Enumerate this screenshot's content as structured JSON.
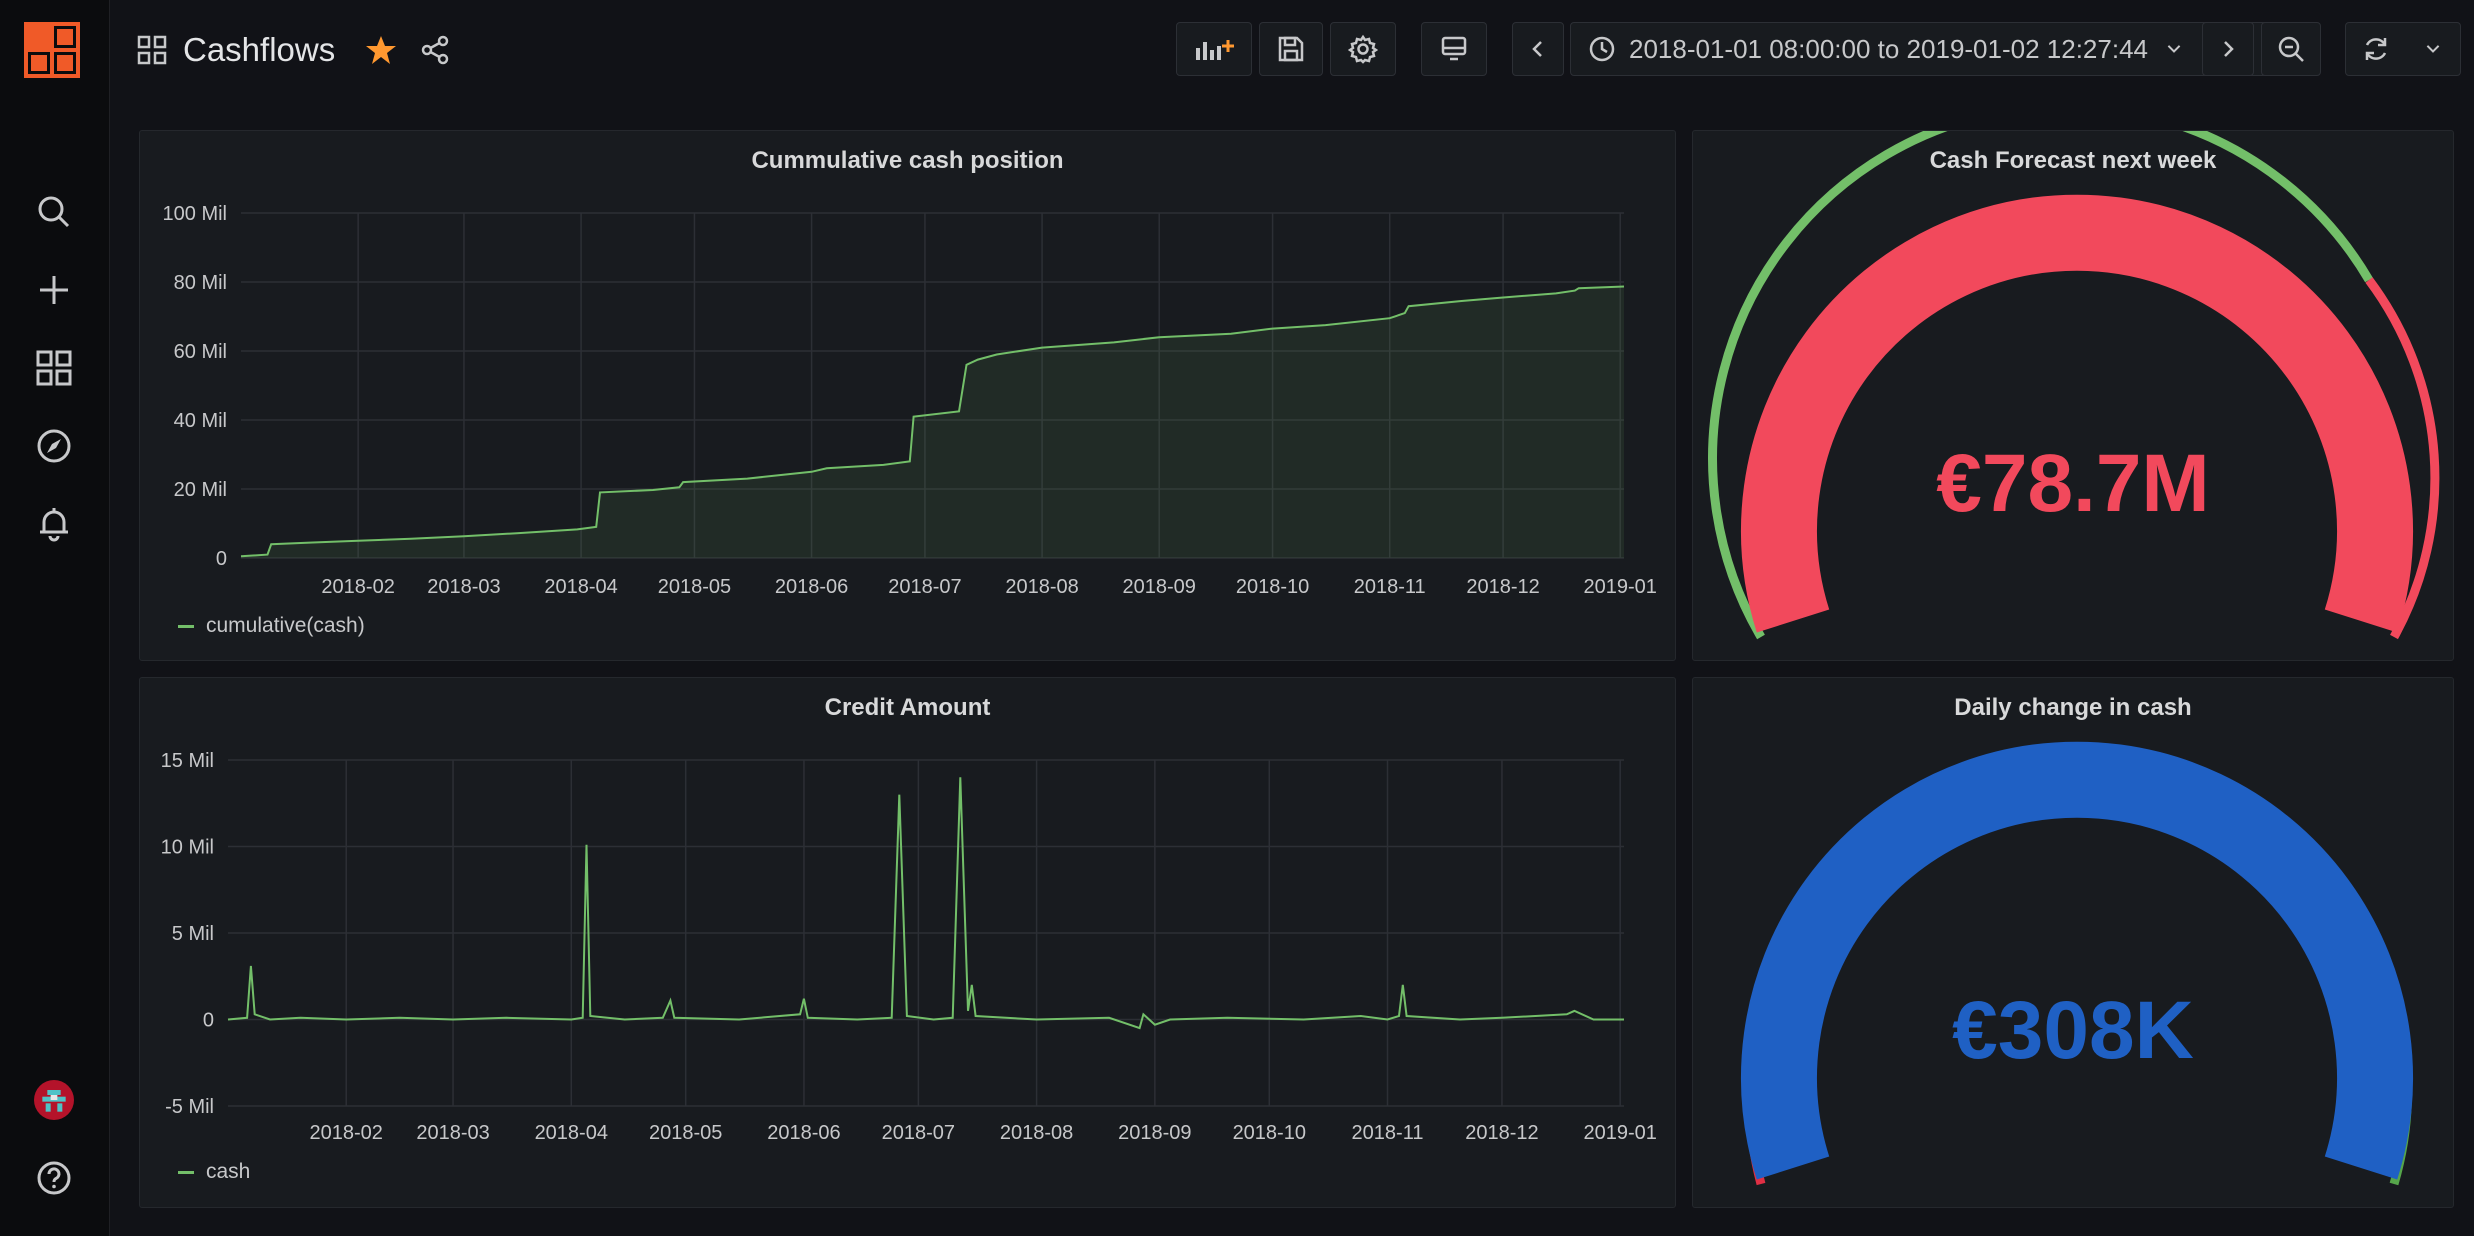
{
  "dashboard": {
    "title": "Cashflows",
    "time_range": "2018-01-01 08:00:00 to 2019-01-02 12:27:44"
  },
  "icons": {
    "logo": "grafana-logo-icon",
    "search": "search-icon",
    "create": "plus-icon",
    "dashboards": "grid-icon",
    "explore": "compass-icon",
    "alerting": "bell-icon",
    "profile": "avatar",
    "help": "help-icon"
  },
  "colors": {
    "background": "#111217",
    "panel": "#181b1f",
    "series_green": "#73bf69",
    "gauge_red": "#f2495c",
    "gauge_blue": "#1f60c4",
    "star": "#ff9830"
  },
  "panels": {
    "cumulative": {
      "title": "Cummulative cash position",
      "legend": "cumulative(cash)"
    },
    "forecast": {
      "title": "Cash Forecast next week",
      "value": "€78.7M"
    },
    "credit": {
      "title": "Credit Amount",
      "legend": "cash"
    },
    "daily": {
      "title": "Daily change in cash",
      "value": "€308K"
    }
  },
  "chart_data": [
    {
      "type": "area",
      "title": "Cummulative cash position",
      "x_tick_labels": [
        "2018-02",
        "2018-03",
        "2018-04",
        "2018-05",
        "2018-06",
        "2018-07",
        "2018-08",
        "2018-09",
        "2018-10",
        "2018-11",
        "2018-12",
        "2019-01"
      ],
      "y_tick_labels": [
        "0",
        "20 Mil",
        "40 Mil",
        "60 Mil",
        "80 Mil",
        "100 Mil"
      ],
      "ylim": [
        0,
        100
      ],
      "xlim": [
        "2018-01-01",
        "2019-01-02"
      ],
      "grid": true,
      "legend_position": "bottom-left",
      "series": [
        {
          "name": "cumulative(cash)",
          "color": "#73bf69",
          "points": [
            [
              "2018-01-01",
              0.5
            ],
            [
              "2018-01-08",
              1
            ],
            [
              "2018-01-09",
              4
            ],
            [
              "2018-01-20",
              4.5
            ],
            [
              "2018-02-01",
              5
            ],
            [
              "2018-02-15",
              5.6
            ],
            [
              "2018-03-01",
              6.3
            ],
            [
              "2018-03-15",
              7.2
            ],
            [
              "2018-03-31",
              8.3
            ],
            [
              "2018-04-05",
              9
            ],
            [
              "2018-04-06",
              19
            ],
            [
              "2018-04-20",
              19.7
            ],
            [
              "2018-04-27",
              20.5
            ],
            [
              "2018-04-28",
              22
            ],
            [
              "2018-05-15",
              23
            ],
            [
              "2018-06-01",
              25
            ],
            [
              "2018-06-05",
              26
            ],
            [
              "2018-06-20",
              27
            ],
            [
              "2018-06-27",
              28
            ],
            [
              "2018-06-28",
              41
            ],
            [
              "2018-07-10",
              42.5
            ],
            [
              "2018-07-12",
              56
            ],
            [
              "2018-07-15",
              57.5
            ],
            [
              "2018-07-20",
              59
            ],
            [
              "2018-08-01",
              61
            ],
            [
              "2018-08-20",
              62.5
            ],
            [
              "2018-09-01",
              64
            ],
            [
              "2018-09-20",
              65
            ],
            [
              "2018-10-01",
              66.5
            ],
            [
              "2018-10-15",
              67.5
            ],
            [
              "2018-11-01",
              69.5
            ],
            [
              "2018-11-05",
              71
            ],
            [
              "2018-11-06",
              73
            ],
            [
              "2018-11-20",
              74.5
            ],
            [
              "2018-12-01",
              75.5
            ],
            [
              "2018-12-15",
              76.7
            ],
            [
              "2018-12-20",
              77.5
            ],
            [
              "2018-12-21",
              78.2
            ],
            [
              "2019-01-02",
              78.7
            ]
          ]
        }
      ]
    },
    {
      "type": "line",
      "title": "Credit Amount",
      "x_tick_labels": [
        "2018-02",
        "2018-03",
        "2018-04",
        "2018-05",
        "2018-06",
        "2018-07",
        "2018-08",
        "2018-09",
        "2018-10",
        "2018-11",
        "2018-12",
        "2019-01"
      ],
      "y_tick_labels": [
        "-5 Mil",
        "0",
        "5 Mil",
        "10 Mil",
        "15 Mil"
      ],
      "ylim": [
        -5,
        15
      ],
      "xlim": [
        "2018-01-01",
        "2019-01-02"
      ],
      "grid": true,
      "legend_position": "bottom-left",
      "series": [
        {
          "name": "cash",
          "color": "#73bf69",
          "points": [
            [
              "2018-01-01",
              0
            ],
            [
              "2018-01-06",
              0.1
            ],
            [
              "2018-01-07",
              3.1
            ],
            [
              "2018-01-08",
              0.3
            ],
            [
              "2018-01-12",
              0
            ],
            [
              "2018-01-20",
              0.1
            ],
            [
              "2018-02-01",
              0
            ],
            [
              "2018-02-15",
              0.1
            ],
            [
              "2018-03-01",
              0
            ],
            [
              "2018-03-15",
              0.1
            ],
            [
              "2018-04-01",
              0
            ],
            [
              "2018-04-04",
              0.1
            ],
            [
              "2018-04-05",
              10.1
            ],
            [
              "2018-04-06",
              0.2
            ],
            [
              "2018-04-15",
              0
            ],
            [
              "2018-04-25",
              0.1
            ],
            [
              "2018-04-27",
              1.1
            ],
            [
              "2018-04-28",
              0.1
            ],
            [
              "2018-05-15",
              0
            ],
            [
              "2018-05-31",
              0.3
            ],
            [
              "2018-06-01",
              1.2
            ],
            [
              "2018-06-02",
              0.1
            ],
            [
              "2018-06-15",
              0
            ],
            [
              "2018-06-24",
              0.1
            ],
            [
              "2018-06-26",
              13
            ],
            [
              "2018-06-28",
              0.2
            ],
            [
              "2018-07-05",
              0
            ],
            [
              "2018-07-10",
              0.1
            ],
            [
              "2018-07-12",
              14
            ],
            [
              "2018-07-14",
              0.5
            ],
            [
              "2018-07-15",
              2
            ],
            [
              "2018-07-16",
              0.2
            ],
            [
              "2018-08-01",
              0
            ],
            [
              "2018-08-20",
              0.1
            ],
            [
              "2018-08-28",
              -0.5
            ],
            [
              "2018-08-29",
              0.3
            ],
            [
              "2018-09-01",
              -0.3
            ],
            [
              "2018-09-05",
              0
            ],
            [
              "2018-09-20",
              0.1
            ],
            [
              "2018-10-10",
              0
            ],
            [
              "2018-10-25",
              0.2
            ],
            [
              "2018-11-01",
              0
            ],
            [
              "2018-11-04",
              0.2
            ],
            [
              "2018-11-05",
              2
            ],
            [
              "2018-11-06",
              0.2
            ],
            [
              "2018-11-20",
              0
            ],
            [
              "2018-12-01",
              0.1
            ],
            [
              "2018-12-18",
              0.3
            ],
            [
              "2018-12-20",
              0.5
            ],
            [
              "2018-12-25",
              0
            ],
            [
              "2019-01-02",
              0
            ]
          ]
        }
      ]
    }
  ]
}
